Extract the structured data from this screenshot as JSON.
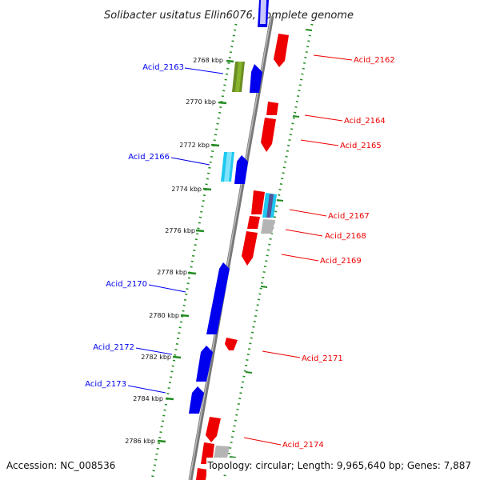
{
  "title": "Solibacter usitatus Ellin6076, complete genome",
  "footer": {
    "accession": "Accession: NC_008536",
    "topology": "Topology: circular; Length: 9,965,640 bp; Genes: 7,887"
  },
  "colors": {
    "forward": "#0000ee",
    "reverse": "#ee0000",
    "backbone": "#888888",
    "ruler": "#228b22",
    "green_gene": "#6b8e23",
    "cyan_gene": "#1ec8f0",
    "gray_gene": "#b4b4b4"
  },
  "ticks": [
    {
      "label": "2768 kbp"
    },
    {
      "label": "2770 kbp"
    },
    {
      "label": "2772 kbp"
    },
    {
      "label": "2774 kbp"
    },
    {
      "label": "2776 kbp"
    },
    {
      "label": "2778 kbp"
    },
    {
      "label": "2780 kbp"
    },
    {
      "label": "2782 kbp"
    },
    {
      "label": "2784 kbp"
    },
    {
      "label": "2786 kbp"
    }
  ],
  "genes_left": [
    {
      "label": "Acid_2163"
    },
    {
      "label": "Acid_2166"
    },
    {
      "label": "Acid_2170"
    },
    {
      "label": "Acid_2172"
    },
    {
      "label": "Acid_2173"
    }
  ],
  "genes_right": [
    {
      "label": "Acid_2162"
    },
    {
      "label": "Acid_2164"
    },
    {
      "label": "Acid_2165"
    },
    {
      "label": "Acid_2167"
    },
    {
      "label": "Acid_2168"
    },
    {
      "label": "Acid_2169"
    },
    {
      "label": "Acid_2171"
    },
    {
      "label": "Acid_2174"
    }
  ]
}
